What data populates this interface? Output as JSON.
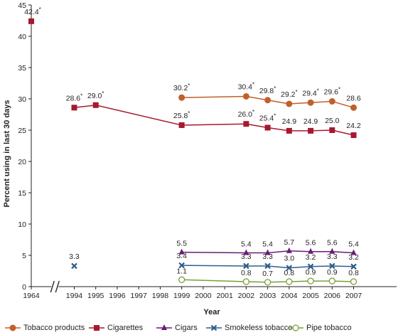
{
  "chart_data": {
    "type": "line",
    "xlabel": "Year",
    "ylabel": "Percent using in last 30 days",
    "ylim": [
      0,
      45
    ],
    "y_ticks": [
      0,
      5,
      10,
      15,
      20,
      25,
      30,
      35,
      40,
      45
    ],
    "x_ticks": [
      "1964",
      "1994",
      "1995",
      "1996",
      "1997",
      "1998",
      "1999",
      "2000",
      "2001",
      "2002",
      "2003",
      "2004",
      "2005",
      "2006",
      "2007"
    ],
    "axis_break_after": "1964",
    "grid": false,
    "legend_position": "bottom",
    "series": [
      {
        "name": "Tobacco products",
        "color": "#c0602a",
        "marker": "circle-filled",
        "points": [
          {
            "x": "1999",
            "y": 30.2,
            "label": "30.2",
            "sig": true
          },
          {
            "x": "2002",
            "y": 30.4,
            "label": "30.4",
            "sig": true
          },
          {
            "x": "2003",
            "y": 29.8,
            "label": "29.8",
            "sig": true
          },
          {
            "x": "2004",
            "y": 29.2,
            "label": "29.2",
            "sig": true
          },
          {
            "x": "2005",
            "y": 29.4,
            "label": "29.4",
            "sig": true
          },
          {
            "x": "2006",
            "y": 29.6,
            "label": "29.6",
            "sig": true
          },
          {
            "x": "2007",
            "y": 28.6,
            "label": "28.6",
            "sig": false
          }
        ]
      },
      {
        "name": "Cigarettes",
        "color": "#a6192e",
        "marker": "square",
        "points": [
          {
            "x": "1964",
            "y": 42.4,
            "label": "42.4",
            "sig": true
          },
          {
            "x": "1994",
            "y": 28.6,
            "label": "28.6",
            "sig": true
          },
          {
            "x": "1995",
            "y": 29.0,
            "label": "29.0",
            "sig": true
          },
          {
            "x": "1999",
            "y": 25.8,
            "label": "25.8",
            "sig": true
          },
          {
            "x": "2002",
            "y": 26.0,
            "label": "26.0",
            "sig": true
          },
          {
            "x": "2003",
            "y": 25.4,
            "label": "25.4",
            "sig": true
          },
          {
            "x": "2004",
            "y": 24.9,
            "label": "24.9",
            "sig": false
          },
          {
            "x": "2005",
            "y": 24.9,
            "label": "24.9",
            "sig": false
          },
          {
            "x": "2006",
            "y": 25.0,
            "label": "25.0",
            "sig": false
          },
          {
            "x": "2007",
            "y": 24.2,
            "label": "24.2",
            "sig": false
          }
        ]
      },
      {
        "name": "Cigars",
        "color": "#6a1b7a",
        "marker": "triangle",
        "points": [
          {
            "x": "1999",
            "y": 5.5,
            "label": "5.5",
            "sig": false
          },
          {
            "x": "2002",
            "y": 5.4,
            "label": "5.4",
            "sig": false
          },
          {
            "x": "2003",
            "y": 5.4,
            "label": "5.4",
            "sig": false
          },
          {
            "x": "2004",
            "y": 5.7,
            "label": "5.7",
            "sig": false
          },
          {
            "x": "2005",
            "y": 5.6,
            "label": "5.6",
            "sig": false
          },
          {
            "x": "2006",
            "y": 5.6,
            "label": "5.6",
            "sig": false
          },
          {
            "x": "2007",
            "y": 5.4,
            "label": "5.4",
            "sig": false
          }
        ]
      },
      {
        "name": "Smokeless tobacco",
        "color": "#2e5e8c",
        "marker": "x",
        "points": [
          {
            "x": "1994",
            "y": 3.3,
            "label": "3.3",
            "sig": false
          },
          {
            "x": "1999",
            "y": 3.4,
            "label": "3.4",
            "sig": false
          },
          {
            "x": "2002",
            "y": 3.3,
            "label": "3.3",
            "sig": false
          },
          {
            "x": "2003",
            "y": 3.3,
            "label": "3.3",
            "sig": false
          },
          {
            "x": "2004",
            "y": 3.0,
            "label": "3.0",
            "sig": false
          },
          {
            "x": "2005",
            "y": 3.2,
            "label": "3.2",
            "sig": false
          },
          {
            "x": "2006",
            "y": 3.3,
            "label": "3.3",
            "sig": false
          },
          {
            "x": "2007",
            "y": 3.2,
            "label": "3.2",
            "sig": false
          }
        ]
      },
      {
        "name": "Pipe tobacco",
        "color": "#7aa03c",
        "marker": "circle-open",
        "points": [
          {
            "x": "1999",
            "y": 1.1,
            "label": "1.1",
            "sig": false
          },
          {
            "x": "2002",
            "y": 0.8,
            "label": "0.8",
            "sig": false
          },
          {
            "x": "2003",
            "y": 0.7,
            "label": "0.7",
            "sig": false
          },
          {
            "x": "2004",
            "y": 0.8,
            "label": "0.8",
            "sig": false
          },
          {
            "x": "2005",
            "y": 0.9,
            "label": "0.9",
            "sig": false
          },
          {
            "x": "2006",
            "y": 0.9,
            "label": "0.9",
            "sig": false
          },
          {
            "x": "2007",
            "y": 0.8,
            "label": "0.8",
            "sig": false
          }
        ]
      }
    ],
    "significance_marker": "*"
  }
}
